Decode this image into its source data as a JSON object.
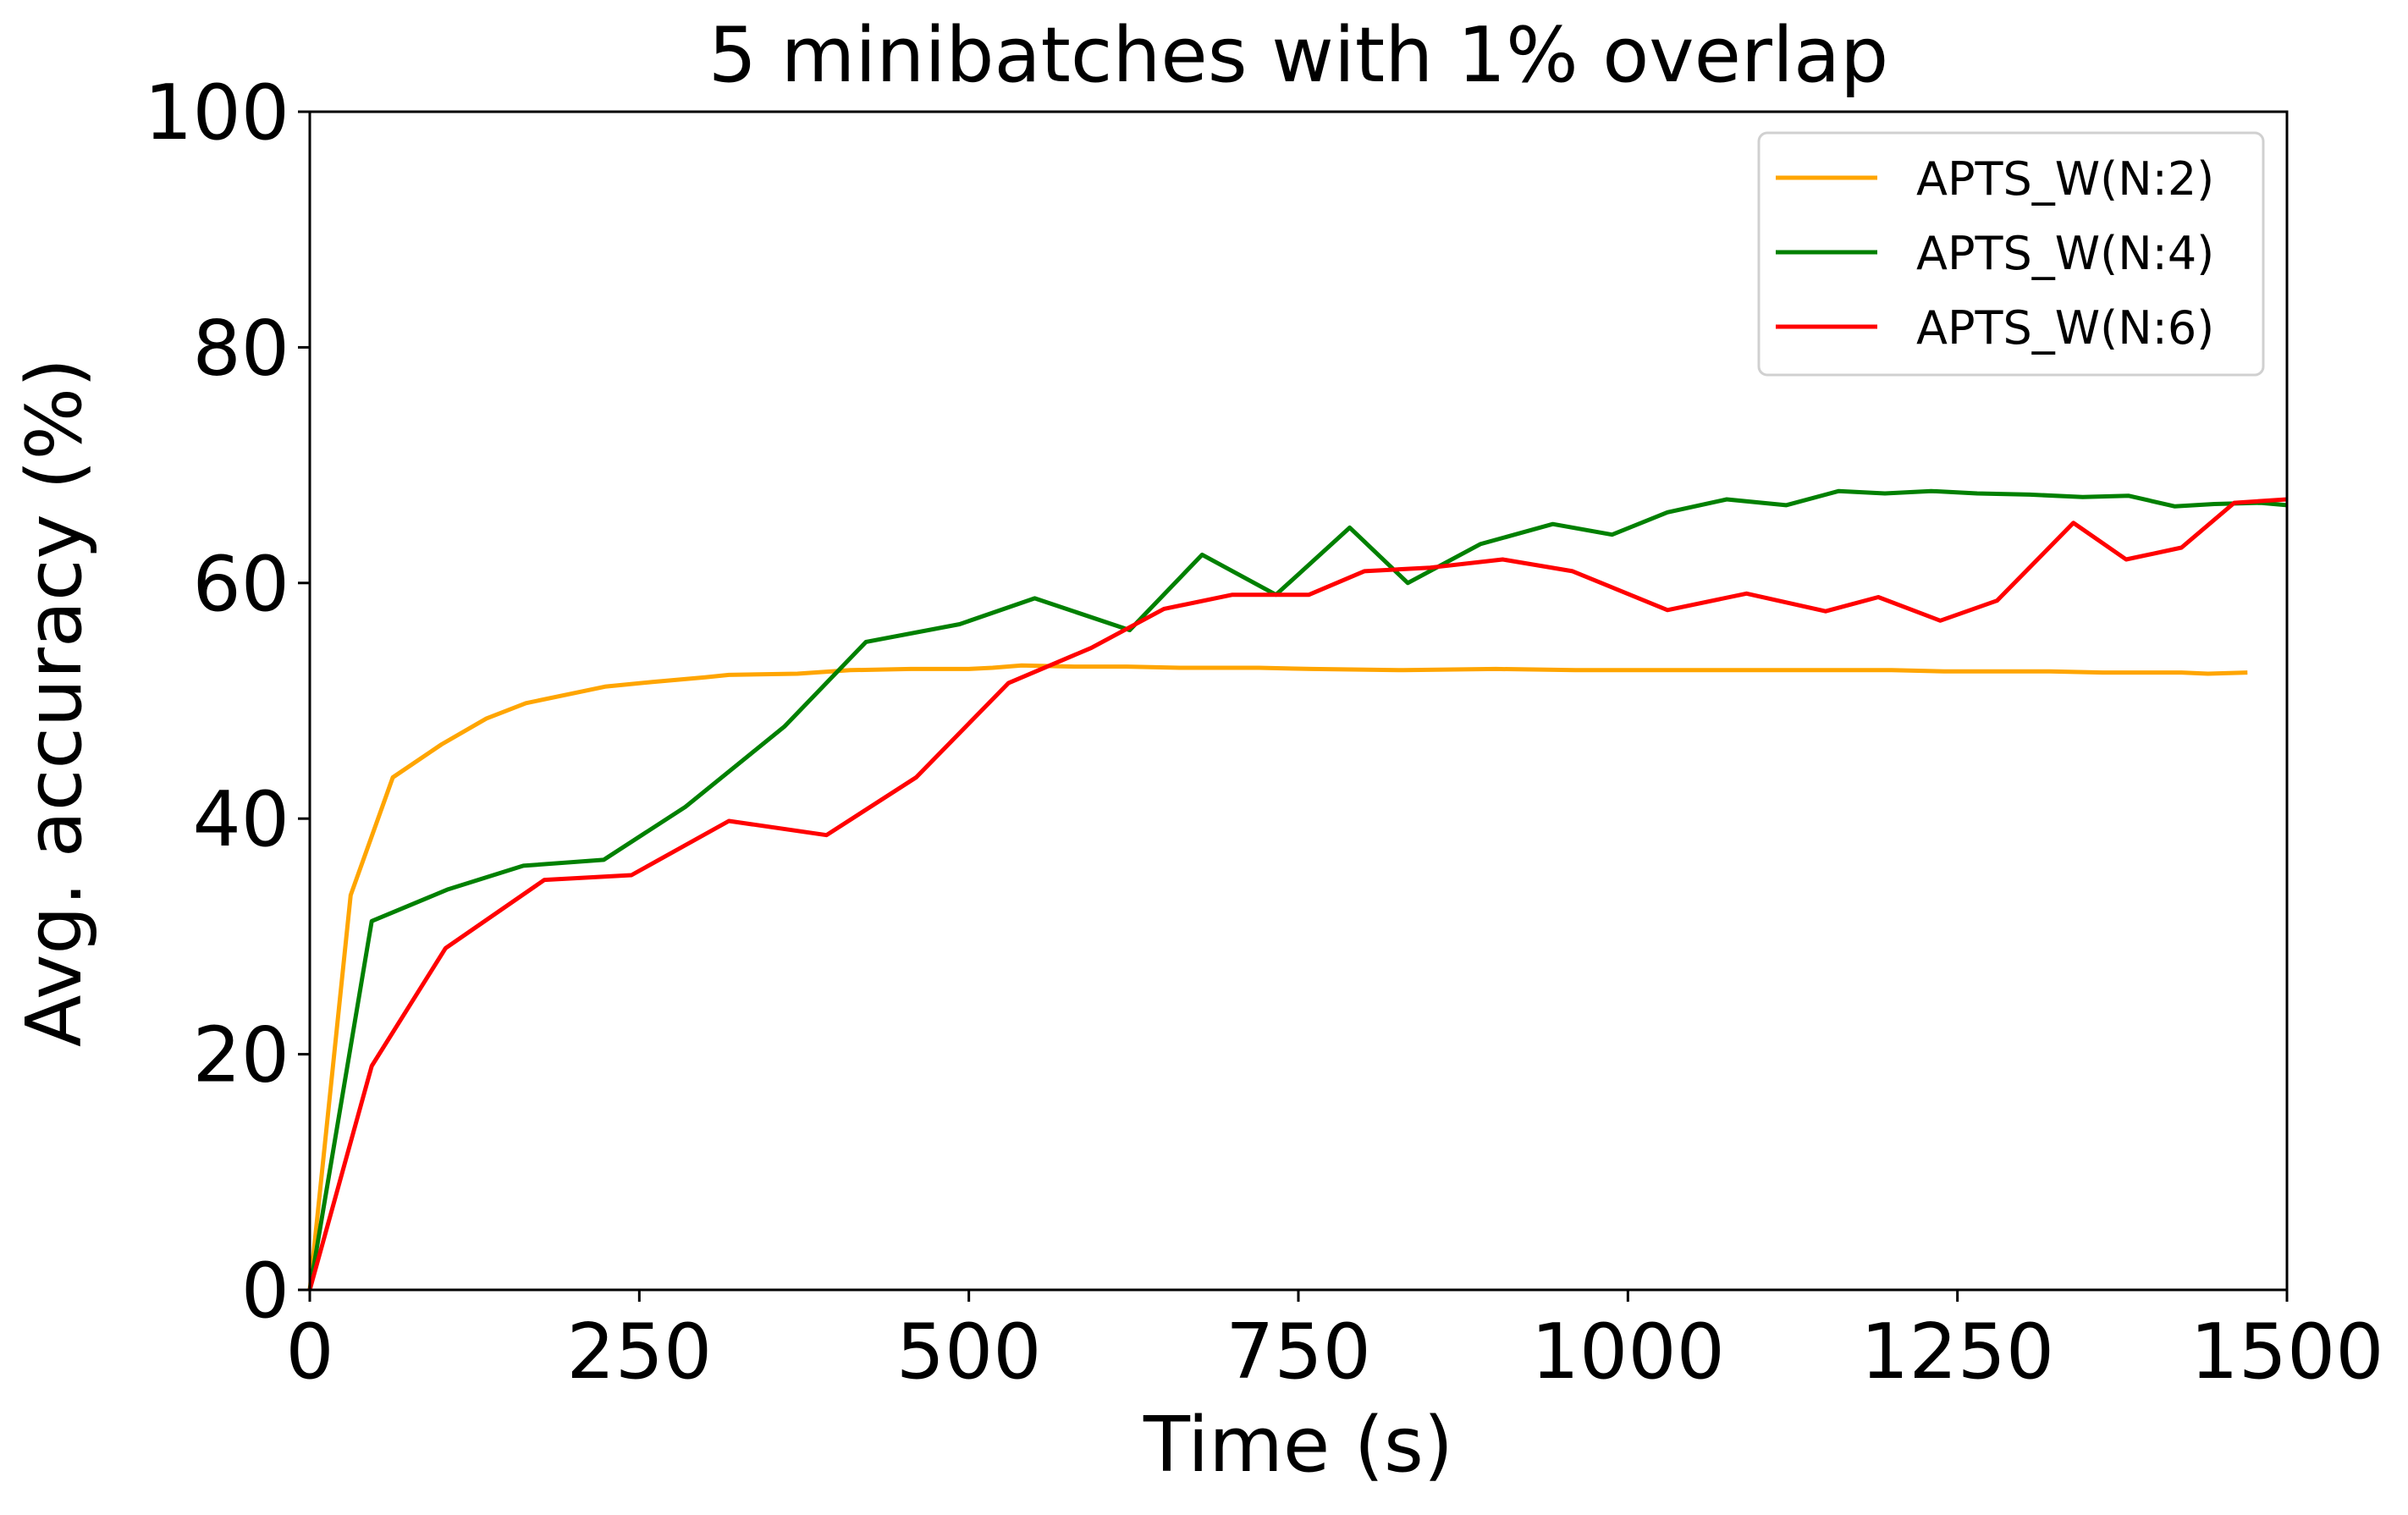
{
  "chart_data": {
    "type": "line",
    "title": "5 minibatches with 1% overlap",
    "xlabel": "Time (s)",
    "ylabel": "Avg. accuracy (%)",
    "xlim": [
      0,
      1500
    ],
    "ylim": [
      0,
      100
    ],
    "xticks": [
      0,
      250,
      500,
      750,
      1000,
      1250,
      1500
    ],
    "yticks": [
      0,
      20,
      40,
      60,
      80,
      100
    ],
    "grid": false,
    "legend_position": "top-right",
    "series": [
      {
        "name": "APTS_W(N:2)",
        "color": "#FFA500",
        "x": [
          0,
          31,
          63,
          100,
          134,
          164,
          224,
          260,
          300,
          318,
          370,
          410,
          456,
          500,
          518,
          540,
          580,
          620,
          660,
          720,
          760,
          830,
          900,
          960,
          1000,
          1040,
          1080,
          1120,
          1160,
          1200,
          1240,
          1280,
          1320,
          1360,
          1380,
          1420,
          1440,
          1470
        ],
        "values": [
          0,
          33.5,
          43.5,
          46.3,
          48.5,
          49.8,
          51.2,
          51.6,
          52.0,
          52.2,
          52.3,
          52.6,
          52.7,
          52.7,
          52.8,
          53.0,
          52.9,
          52.9,
          52.8,
          52.8,
          52.7,
          52.6,
          52.7,
          52.6,
          52.6,
          52.6,
          52.6,
          52.6,
          52.6,
          52.6,
          52.5,
          52.5,
          52.5,
          52.4,
          52.4,
          52.4,
          52.3,
          52.4
        ]
      },
      {
        "name": "APTS_W(N:4)",
        "color": "#008000",
        "x": [
          0,
          47,
          105,
          162,
          223,
          285,
          360,
          422,
          493,
          550,
          622,
          677,
          733,
          789,
          833,
          888,
          943,
          988,
          1030,
          1075,
          1120,
          1160,
          1195,
          1230,
          1265,
          1305,
          1345,
          1380,
          1415,
          1445,
          1480,
          1500
        ],
        "values": [
          0,
          31.3,
          34.0,
          36.0,
          36.5,
          41.0,
          47.8,
          55.0,
          56.5,
          58.7,
          56.0,
          62.4,
          59.0,
          64.7,
          60.0,
          63.3,
          65.0,
          64.1,
          66.0,
          67.1,
          66.6,
          67.8,
          67.6,
          67.8,
          67.6,
          67.5,
          67.3,
          67.4,
          66.5,
          66.7,
          66.8,
          66.6
        ]
      },
      {
        "name": "APTS_W(N:6)",
        "color": "#FF0000",
        "x": [
          0,
          47,
          103,
          178,
          244,
          318,
          392,
          460,
          530,
          593,
          648,
          700,
          758,
          800,
          850,
          905,
          958,
          1030,
          1090,
          1150,
          1190,
          1237,
          1280,
          1338,
          1378,
          1420,
          1460,
          1500
        ],
        "values": [
          0,
          19.0,
          29.0,
          34.8,
          35.2,
          39.8,
          38.6,
          43.5,
          51.5,
          54.5,
          57.8,
          59.0,
          59.0,
          61.0,
          61.3,
          62.0,
          61.0,
          57.7,
          59.1,
          57.6,
          58.8,
          56.8,
          58.5,
          65.1,
          62.0,
          63.0,
          66.8,
          67.1
        ]
      }
    ]
  }
}
